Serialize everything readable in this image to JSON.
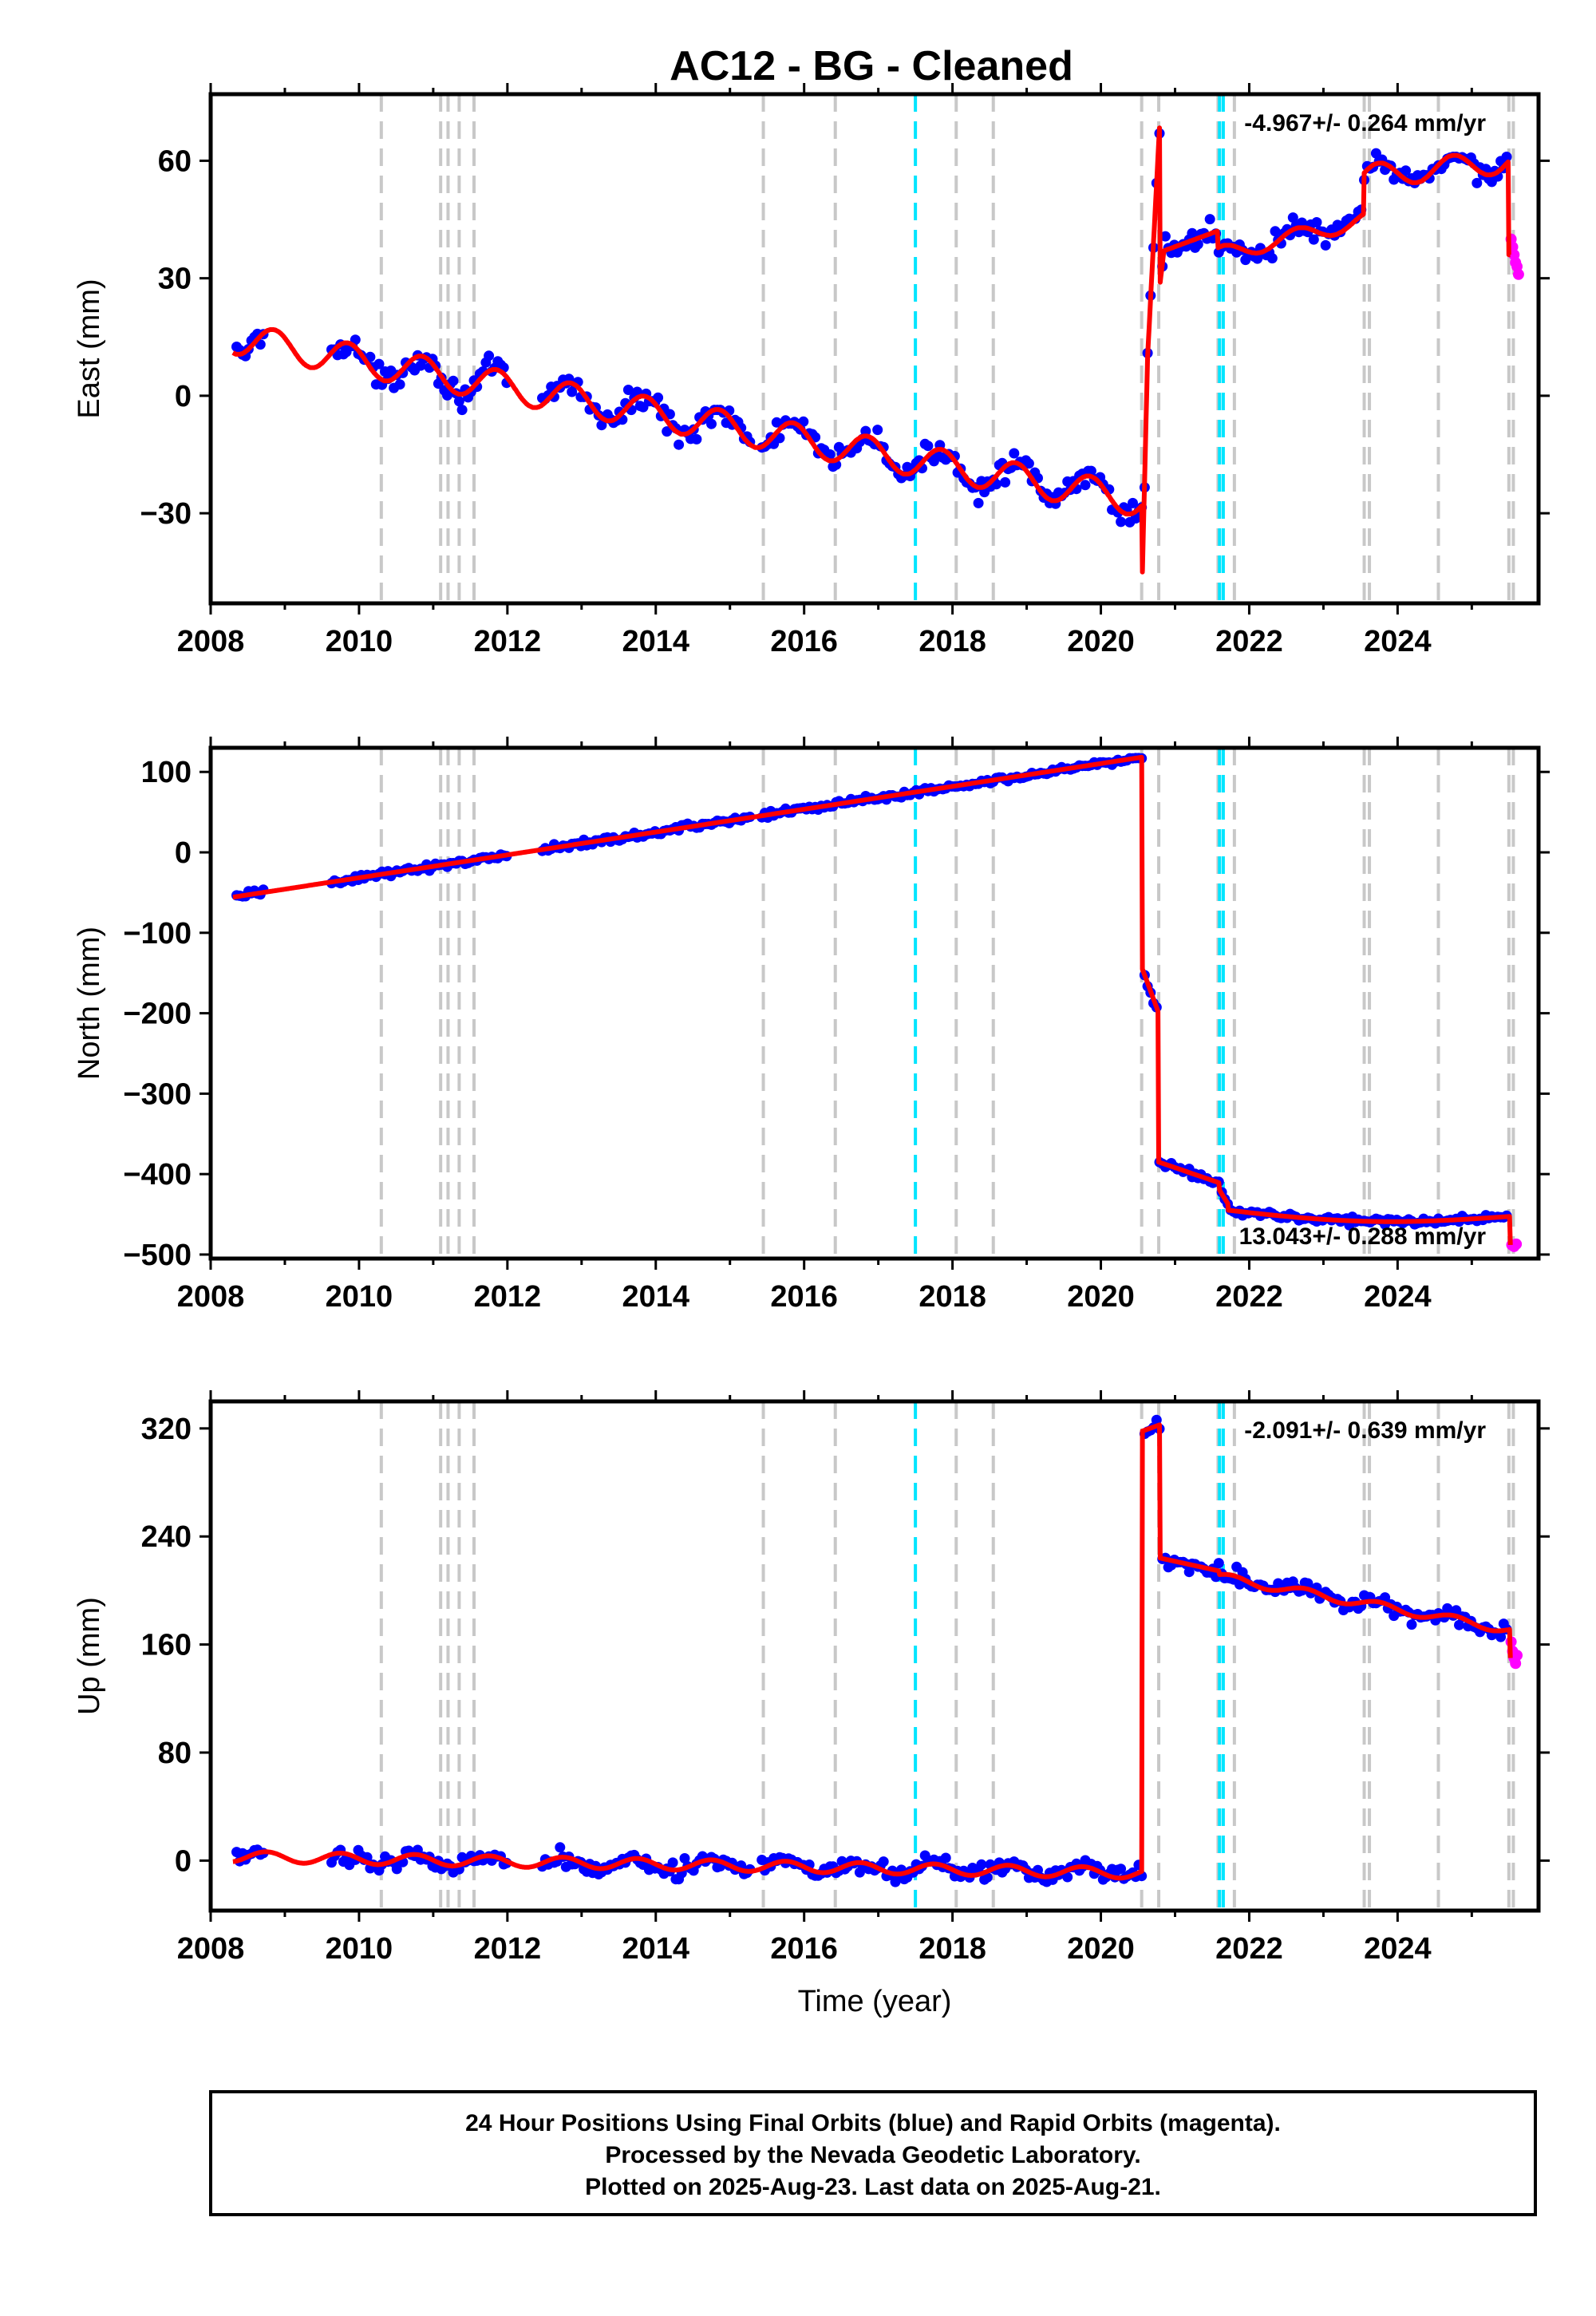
{
  "figure": {
    "title": "AC12  - BG - Cleaned",
    "footer_lines": [
      "24 Hour Positions Using Final Orbits (blue) and Rapid Orbits (magenta).",
      "Processed by the Nevada Geodetic Laboratory.",
      "Plotted on 2025-Aug-23. Last data on 2025-Aug-21."
    ],
    "colors": {
      "final_orbits": "#0000ff",
      "rapid_orbits": "#ff00ff",
      "model": "#ff0000",
      "equipment_change_line": "#c8c8c8",
      "earthquake_line": "#00e5ff"
    }
  },
  "chart_data": [
    {
      "type": "scatter",
      "panel": "east",
      "ylabel": "East (mm)",
      "xlabel": "",
      "xlim": [
        2008.0,
        2025.9
      ],
      "ylim": [
        -53,
        77
      ],
      "xticks": [
        2008,
        2010,
        2012,
        2014,
        2016,
        2018,
        2020,
        2022,
        2024
      ],
      "yticks": [
        -30,
        0,
        30,
        60
      ],
      "rate_label": "-4.967+/- 0.264 mm/yr",
      "rate_position": "top-right",
      "equipment_changes": [
        2010.3,
        2011.1,
        2011.2,
        2011.35,
        2011.55,
        2015.45,
        2016.42,
        2018.05,
        2018.55,
        2020.55,
        2020.78,
        2021.58,
        2021.8,
        2023.55,
        2023.62,
        2024.55,
        2025.5,
        2025.56
      ],
      "earthquakes": [
        2017.5,
        2021.6,
        2021.65
      ],
      "model": {
        "name": "",
        "x": [],
        "y": []
      },
      "final_orbits": {
        "name": "",
        "x": [],
        "y": []
      },
      "rapid_orbits": {
        "name": "",
        "x": [
          2025.53,
          2025.55,
          2025.57,
          2025.59,
          2025.61,
          2025.63
        ],
        "y": [
          40,
          38,
          36,
          34,
          33,
          31
        ]
      }
    },
    {
      "type": "scatter",
      "panel": "north",
      "ylabel": "North (mm)",
      "xlabel": "",
      "xlim": [
        2008.0,
        2025.9
      ],
      "ylim": [
        -505,
        130
      ],
      "xticks": [
        2008,
        2010,
        2012,
        2014,
        2016,
        2018,
        2020,
        2022,
        2024
      ],
      "yticks": [
        -500,
        -400,
        -300,
        -200,
        -100,
        0,
        100
      ],
      "rate_label": "13.043+/- 0.288 mm/yr",
      "rate_position": "bottom-right",
      "equipment_changes": [
        2010.3,
        2011.1,
        2011.2,
        2011.35,
        2011.55,
        2015.45,
        2016.42,
        2018.05,
        2018.55,
        2020.55,
        2020.78,
        2021.58,
        2021.8,
        2023.55,
        2023.62,
        2024.55,
        2025.5,
        2025.56
      ],
      "earthquakes": [
        2017.5,
        2021.6,
        2021.65
      ],
      "model": {
        "name": "",
        "x": [],
        "y": []
      },
      "final_orbits": {
        "name": "",
        "x": [],
        "y": []
      },
      "rapid_orbits": {
        "name": "",
        "x": [
          2025.54,
          2025.57,
          2025.6
        ],
        "y": [
          -488,
          -490,
          -487
        ]
      }
    },
    {
      "type": "scatter",
      "panel": "up",
      "ylabel": "Up (mm)",
      "xlabel": "Time (year)",
      "xlim": [
        2008.0,
        2025.9
      ],
      "ylim": [
        -37,
        340
      ],
      "xticks": [
        2008,
        2010,
        2012,
        2014,
        2016,
        2018,
        2020,
        2022,
        2024
      ],
      "yticks": [
        0,
        80,
        160,
        240,
        320
      ],
      "rate_label": "-2.091+/- 0.639 mm/yr",
      "rate_position": "top-right",
      "equipment_changes": [
        2010.3,
        2011.1,
        2011.2,
        2011.35,
        2011.55,
        2015.45,
        2016.42,
        2018.05,
        2018.55,
        2020.55,
        2020.78,
        2021.58,
        2021.8,
        2023.55,
        2023.62,
        2024.55,
        2025.5,
        2025.56
      ],
      "earthquakes": [
        2017.5,
        2021.6,
        2021.65
      ],
      "model": {
        "name": "",
        "x": [],
        "y": []
      },
      "final_orbits": {
        "name": "",
        "x": [],
        "y": []
      },
      "rapid_orbits": {
        "name": "",
        "x": [
          2025.53,
          2025.55,
          2025.57,
          2025.59,
          2025.61
        ],
        "y": [
          162,
          155,
          150,
          146,
          152
        ]
      }
    }
  ]
}
